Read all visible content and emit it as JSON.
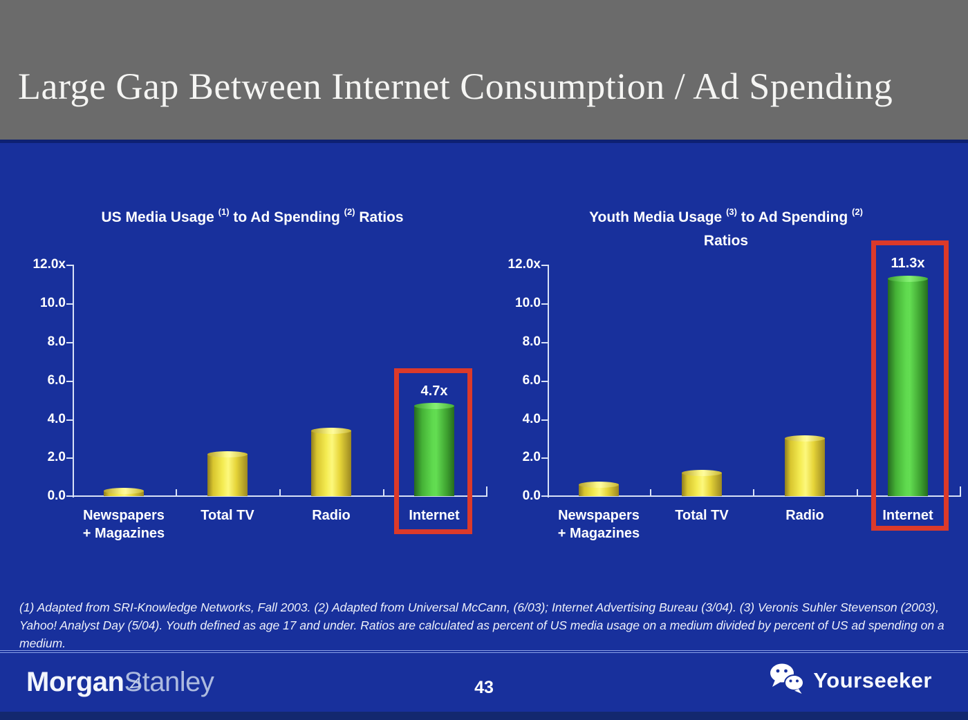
{
  "header": {
    "title": "Large Gap Between Internet Consumption / Ad Spending"
  },
  "chart_data": [
    {
      "type": "bar",
      "title": "US Media Usage (1) to Ad Spending (2) Ratios",
      "title_parts": {
        "t1": "US Media Usage",
        "sup1": "(1)",
        "t2": "to Ad Spending",
        "sup2": "(2)",
        "t3": "Ratios"
      },
      "categories": [
        "Newspapers + Magazines",
        "Total TV",
        "Radio",
        "Internet"
      ],
      "category_lines": [
        [
          "Newspapers",
          "+ Magazines"
        ],
        [
          "Total TV"
        ],
        [
          "Radio"
        ],
        [
          "Internet"
        ]
      ],
      "values": [
        0.3,
        2.2,
        3.4,
        4.7
      ],
      "bar_colors": [
        "yellow",
        "yellow",
        "yellow",
        "green"
      ],
      "highlight": {
        "index": 3,
        "label": "4.7x",
        "boxed": true
      },
      "ylim": [
        0,
        12
      ],
      "yticks": [
        12,
        10,
        8,
        6,
        4,
        2,
        0
      ],
      "ytick_labels": [
        "12.0x",
        "10.0",
        "8.0",
        "6.0",
        "4.0",
        "2.0",
        "0.0"
      ],
      "xlabel": "",
      "ylabel": "",
      "grid": false,
      "legend": null
    },
    {
      "type": "bar",
      "title": "Youth Media Usage (3) to Ad Spending (2) Ratios",
      "title_parts": {
        "t1": "Youth Media Usage",
        "sup1": "(3)",
        "t2": "to Ad Spending",
        "sup2": "(2)",
        "line2": "Ratios"
      },
      "categories": [
        "Newspapers + Magazines",
        "Total TV",
        "Radio",
        "Internet"
      ],
      "category_lines": [
        [
          "Newspapers",
          "+ Magazines"
        ],
        [
          "Total TV"
        ],
        [
          "Radio"
        ],
        [
          "Internet"
        ]
      ],
      "values": [
        0.6,
        1.2,
        3.0,
        11.3
      ],
      "bar_colors": [
        "yellow",
        "yellow",
        "yellow",
        "green"
      ],
      "highlight": {
        "index": 3,
        "label": "11.3x",
        "boxed": true
      },
      "ylim": [
        0,
        12
      ],
      "yticks": [
        12,
        10,
        8,
        6,
        4,
        2,
        0
      ],
      "ytick_labels": [
        "12.0x",
        "10.0",
        "8.0",
        "6.0",
        "4.0",
        "2.0",
        "0.0"
      ],
      "xlabel": "",
      "ylabel": "",
      "grid": false,
      "legend": null
    }
  ],
  "footnote": {
    "text": "(1) Adapted from SRI-Knowledge Networks, Fall 2003.  (2) Adapted from Universal McCann, (6/03); Internet Advertising Bureau (3/04). (3) Veronis Suhler Stevenson (2003), Yahoo! Analyst Day (5/04).  Youth defined as age 17 and under.  Ratios are calculated as percent of US media usage on a medium divided by percent of US ad spending on a medium."
  },
  "footer": {
    "brand_part1": "Morgan",
    "brand_part2": "Stanley",
    "page_number": "43",
    "watermark": "Yourseeker"
  },
  "colors": {
    "background_blue": "#18309c",
    "header_gray": "#6b6b6b",
    "bar_yellow": "#f0e73e",
    "bar_green": "#53cc43",
    "highlight_red": "#dc3a2a",
    "axis_line": "#d9e2f7",
    "text_white": "#ffffff"
  }
}
